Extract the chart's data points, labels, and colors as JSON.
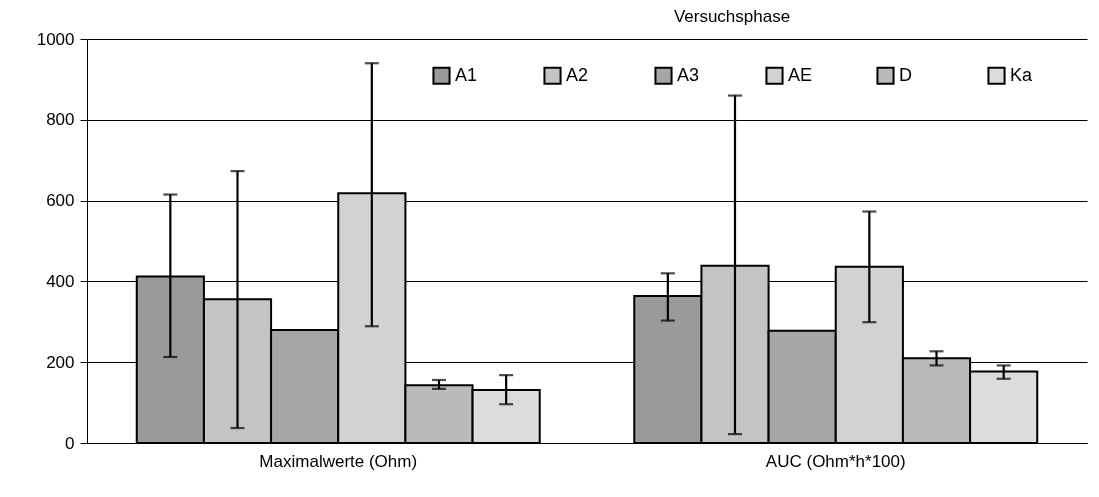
{
  "chart_data": {
    "type": "bar",
    "legend_title": "Versuchsphase",
    "categories": [
      "Maximalwerte (Ohm)",
      "AUC (Ohm*h*100)"
    ],
    "series": [
      {
        "name": "A1",
        "color": "#9a9a9a",
        "values": [
          412,
          364
        ],
        "errors": [
          [
            213,
            615
          ],
          [
            303,
            420
          ]
        ]
      },
      {
        "name": "A2",
        "color": "#c4c4c4",
        "values": [
          356,
          439
        ],
        "errors": [
          [
            37,
            673
          ],
          [
            22,
            860
          ]
        ]
      },
      {
        "name": "A3",
        "color": "#a6a6a6",
        "values": [
          280,
          278
        ],
        "errors": [
          null,
          null
        ]
      },
      {
        "name": "AE",
        "color": "#d2d2d2",
        "values": [
          618,
          436
        ],
        "errors": [
          [
            289,
            940
          ],
          [
            299,
            573
          ]
        ]
      },
      {
        "name": "D",
        "color": "#bababa",
        "values": [
          143,
          210
        ],
        "errors": [
          [
            134,
            156
          ],
          [
            192,
            227
          ]
        ]
      },
      {
        "name": "Ka",
        "color": "#dcdcdc",
        "values": [
          131,
          177
        ],
        "errors": [
          [
            96,
            168
          ],
          [
            159,
            192
          ]
        ]
      }
    ],
    "ylim": [
      0,
      1000
    ],
    "yticks": [
      0,
      200,
      400,
      600,
      800,
      1000
    ],
    "grid": "y",
    "legend": "top right"
  }
}
